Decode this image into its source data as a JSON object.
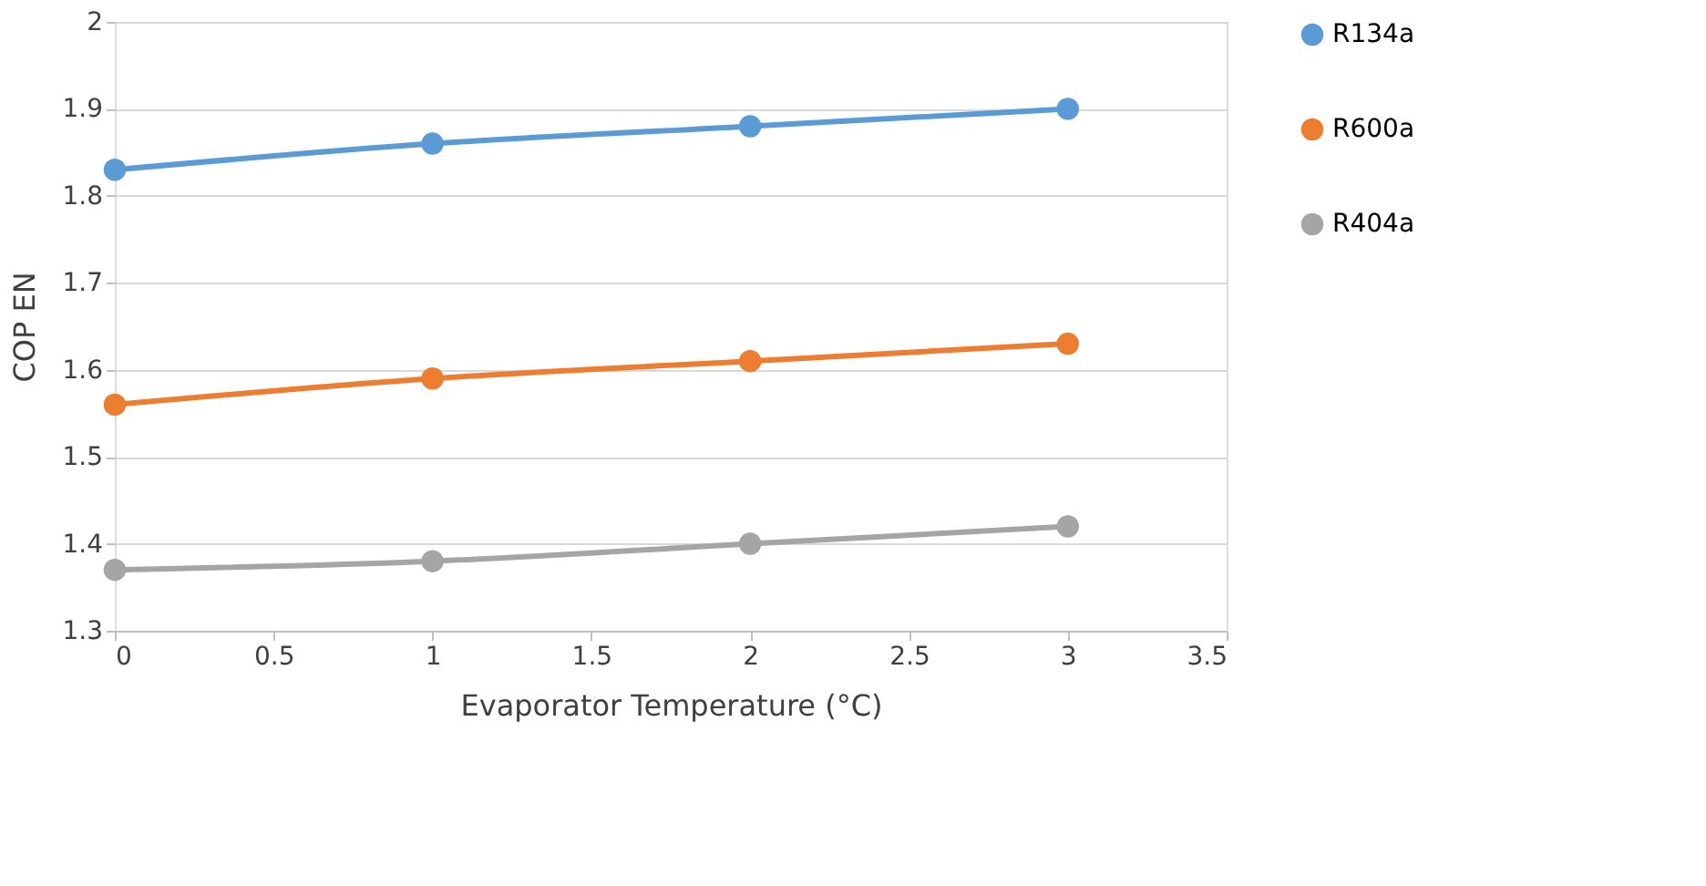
{
  "chart_data": {
    "type": "line",
    "xlabel": "Evaporator Temperature (°C)",
    "ylabel": "COP EN",
    "x": [
      0,
      1,
      2,
      3
    ],
    "series": [
      {
        "name": "R134a",
        "color": "#5b9bd5",
        "values": [
          1.83,
          1.86,
          1.88,
          1.9
        ]
      },
      {
        "name": "R600a",
        "color": "#ed7d31",
        "values": [
          1.56,
          1.59,
          1.61,
          1.63
        ]
      },
      {
        "name": "R404a",
        "color": "#a5a5a5",
        "values": [
          1.37,
          1.38,
          1.4,
          1.42
        ]
      }
    ],
    "xlim": [
      0,
      3.5
    ],
    "xticks": [
      0,
      0.5,
      1,
      1.5,
      2,
      2.5,
      3,
      3.5
    ],
    "ylim": [
      1.3,
      2
    ],
    "yticks": [
      1.3,
      1.4,
      1.5,
      1.6,
      1.7,
      1.8,
      1.9,
      2
    ],
    "grid": "y",
    "legend": "right",
    "marker": "circle",
    "line_style": "solid"
  }
}
